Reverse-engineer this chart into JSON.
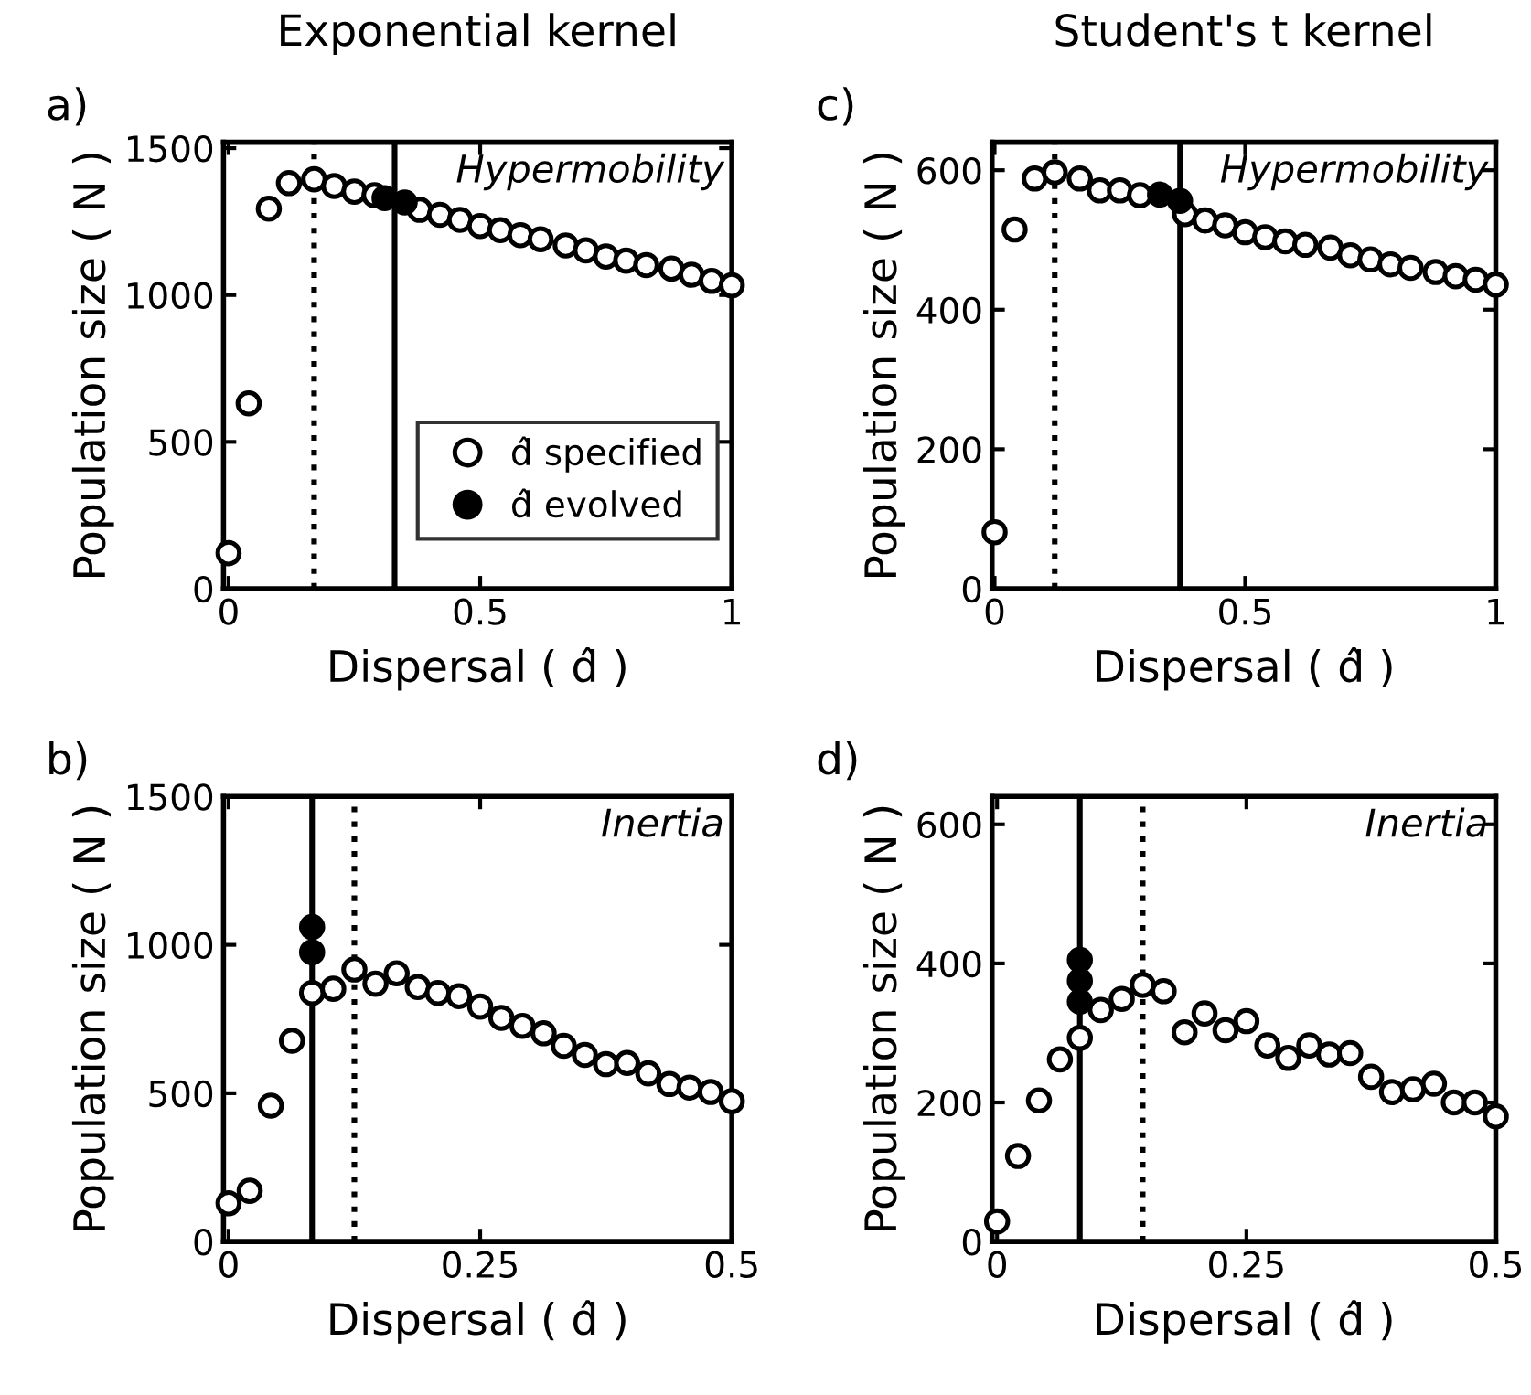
{
  "chart_data": [
    {
      "type": "scatter",
      "title": "Exponential kernel",
      "xlabel": "Dispersal ( d̂ )",
      "ylabel": "Population size ( N )",
      "annotations": [
        "a)",
        "Hypermobility"
      ],
      "marker": "circle",
      "legend": "bottom right",
      "xlim": [
        -0.01,
        1.0
      ],
      "ylim": [
        0,
        1520
      ],
      "xticks": [
        0,
        0.5,
        1
      ],
      "yticks": [
        0,
        500,
        1000,
        1500
      ],
      "series": [
        {
          "name": "d̂ specified",
          "color": "#ffffff",
          "x": [
            0,
            0.04,
            0.08,
            0.12,
            0.17,
            0.21,
            0.25,
            0.29,
            0.33,
            0.38,
            0.42,
            0.46,
            0.5,
            0.54,
            0.58,
            0.62,
            0.67,
            0.71,
            0.75,
            0.79,
            0.83,
            0.88,
            0.92,
            0.96,
            1.0
          ],
          "values": [
            121,
            631,
            1294,
            1381,
            1394,
            1371,
            1352,
            1340,
            null,
            1290,
            1273,
            1256,
            1235,
            1221,
            1204,
            1190,
            1169,
            1152,
            1131,
            1117,
            1102,
            1090,
            1069,
            1048,
            1033
          ]
        },
        {
          "name": "d̂ evolved",
          "color": "#000000",
          "x": [
            0.31,
            0.35
          ],
          "values": [
            1330,
            1315
          ]
        }
      ],
      "ref_lines": [
        {
          "axis": "x",
          "value": 0.17,
          "line_style": "dotted",
          "color": "#000000"
        },
        {
          "axis": "x",
          "value": 0.33,
          "line_style": "solid",
          "color": "#000000"
        }
      ]
    },
    {
      "type": "scatter",
      "xlabel": "Dispersal ( d̂ )",
      "ylabel": "Population size ( N )",
      "annotations": [
        "b)",
        "Inertia"
      ],
      "marker": "circle",
      "xlim": [
        -0.005,
        0.5
      ],
      "ylim": [
        0,
        1500
      ],
      "xticks": [
        0,
        0.25,
        0.5
      ],
      "yticks": [
        0,
        500,
        1000,
        1500
      ],
      "series": [
        {
          "color": "#ffffff",
          "x": [
            0,
            0.021,
            0.042,
            0.063,
            0.083,
            0.104,
            0.125,
            0.146,
            0.167,
            0.188,
            0.208,
            0.229,
            0.25,
            0.271,
            0.292,
            0.313,
            0.333,
            0.354,
            0.375,
            0.396,
            0.417,
            0.438,
            0.458,
            0.479,
            0.5
          ],
          "values": [
            129,
            171,
            458,
            677,
            838,
            852,
            917,
            869,
            904,
            858,
            838,
            827,
            792,
            754,
            727,
            702,
            660,
            629,
            598,
            602,
            567,
            531,
            519,
            504,
            473
          ]
        },
        {
          "color": "#000000",
          "x": [
            0.083,
            0.083
          ],
          "values": [
            975,
            1060
          ]
        }
      ],
      "ref_lines": [
        {
          "axis": "x",
          "value": 0.125,
          "line_style": "dotted",
          "color": "#000000"
        },
        {
          "axis": "x",
          "value": 0.083,
          "line_style": "solid",
          "color": "#000000"
        }
      ]
    },
    {
      "type": "scatter",
      "title": "Student's t kernel",
      "xlabel": "Dispersal ( d̂ )",
      "ylabel": "Population size ( N )",
      "annotations": [
        "c)",
        "Hypermobility"
      ],
      "marker": "circle",
      "xlim": [
        -0.005,
        1.0
      ],
      "ylim": [
        0,
        640
      ],
      "xticks": [
        0,
        0.5,
        1
      ],
      "yticks": [
        0,
        200,
        400,
        600
      ],
      "series": [
        {
          "color": "#ffffff",
          "x": [
            0,
            0.04,
            0.08,
            0.12,
            0.17,
            0.21,
            0.25,
            0.29,
            0.33,
            0.38,
            0.42,
            0.46,
            0.5,
            0.54,
            0.58,
            0.62,
            0.67,
            0.71,
            0.75,
            0.79,
            0.83,
            0.88,
            0.92,
            0.96,
            1.0
          ],
          "values": [
            81,
            515,
            588,
            597,
            588,
            571,
            571,
            564,
            null,
            537,
            528,
            521,
            511,
            504,
            498,
            493,
            489,
            478,
            472,
            465,
            460,
            454,
            448,
            443,
            436
          ]
        },
        {
          "color": "#000000",
          "x": [
            0.33,
            0.37
          ],
          "values": [
            565,
            556
          ]
        }
      ],
      "ref_lines": [
        {
          "axis": "x",
          "value": 0.12,
          "line_style": "dotted",
          "color": "#000000"
        },
        {
          "axis": "x",
          "value": 0.37,
          "line_style": "solid",
          "color": "#000000"
        }
      ]
    },
    {
      "type": "scatter",
      "xlabel": "Dispersal ( d̂ )",
      "ylabel": "Population size ( N )",
      "annotations": [
        "d)",
        "Inertia"
      ],
      "marker": "circle",
      "xlim": [
        -0.005,
        0.5
      ],
      "ylim": [
        0,
        640
      ],
      "xticks": [
        0,
        0.25,
        0.5
      ],
      "yticks": [
        0,
        200,
        400,
        600
      ],
      "series": [
        {
          "color": "#ffffff",
          "x": [
            0,
            0.021,
            0.042,
            0.063,
            0.083,
            0.104,
            0.125,
            0.146,
            0.167,
            0.188,
            0.208,
            0.229,
            0.25,
            0.271,
            0.292,
            0.313,
            0.333,
            0.354,
            0.375,
            0.396,
            0.417,
            0.438,
            0.458,
            0.479,
            0.5
          ],
          "values": [
            29,
            123,
            203,
            262,
            293,
            333,
            349,
            369,
            360,
            301,
            328,
            304,
            317,
            282,
            264,
            282,
            269,
            271,
            237,
            215,
            219,
            227,
            200,
            200,
            180
          ]
        },
        {
          "color": "#000000",
          "x": [
            0.083,
            0.083,
            0.083
          ],
          "values": [
            345,
            375,
            405
          ]
        }
      ],
      "ref_lines": [
        {
          "axis": "x",
          "value": 0.146,
          "line_style": "dotted",
          "color": "#000000"
        },
        {
          "axis": "x",
          "value": 0.083,
          "line_style": "solid",
          "color": "#000000"
        }
      ]
    }
  ]
}
